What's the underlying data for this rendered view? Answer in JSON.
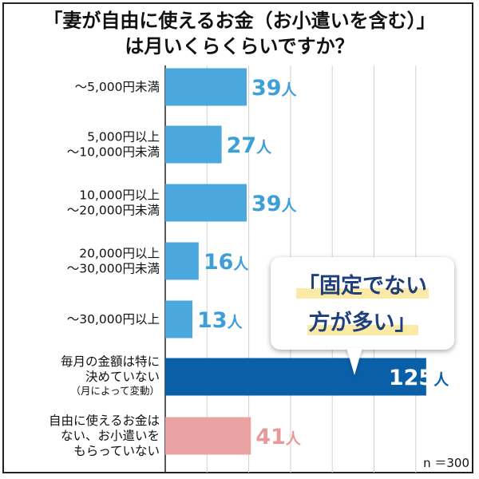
{
  "chart_data": {
    "type": "bar",
    "orientation": "horizontal",
    "title_lines": [
      "「妻が自由に使えるお金（お小遣いを含む）」",
      "は月いくらくらいですか？"
    ],
    "unit": "人",
    "categories": [
      {
        "lines": [
          "〜5,000円未満"
        ],
        "note": ""
      },
      {
        "lines": [
          "5,000円以上",
          "〜10,000円未満"
        ],
        "note": ""
      },
      {
        "lines": [
          "10,000円以上",
          "〜20,000円未満"
        ],
        "note": ""
      },
      {
        "lines": [
          "20,000円以上",
          "〜30,000円未満"
        ],
        "note": ""
      },
      {
        "lines": [
          "〜30,000円以上"
        ],
        "note": ""
      },
      {
        "lines": [
          "毎月の金額は特に",
          "決めていない"
        ],
        "note": "（月によって変動）"
      },
      {
        "lines": [
          "自由に使えるお金は",
          "ない、お小遣いを",
          "もらっていない"
        ],
        "note": ""
      }
    ],
    "values": [
      39,
      27,
      39,
      16,
      13,
      125,
      41
    ],
    "value_labels": [
      "39",
      "27",
      "39",
      "16",
      "13",
      "125",
      "41"
    ],
    "bar_colors": [
      "#4aa8de",
      "#4aa8de",
      "#4aa8de",
      "#4aa8de",
      "#4aa8de",
      "#0a60a8",
      "#eaa3a3"
    ],
    "label_colors": [
      "#3d9fd8",
      "#3d9fd8",
      "#3d9fd8",
      "#3d9fd8",
      "#3d9fd8",
      "#0a60a8",
      "#e89a9a"
    ],
    "xlim": [
      0,
      135
    ],
    "gridlines": true,
    "grid_color": "#d0d0d0",
    "footnote": "n ＝300",
    "callout": {
      "line1": "「固定でない",
      "line2": "方が多い」",
      "text_color": "#1f3f7a",
      "highlight": "#fbe9a7"
    }
  }
}
